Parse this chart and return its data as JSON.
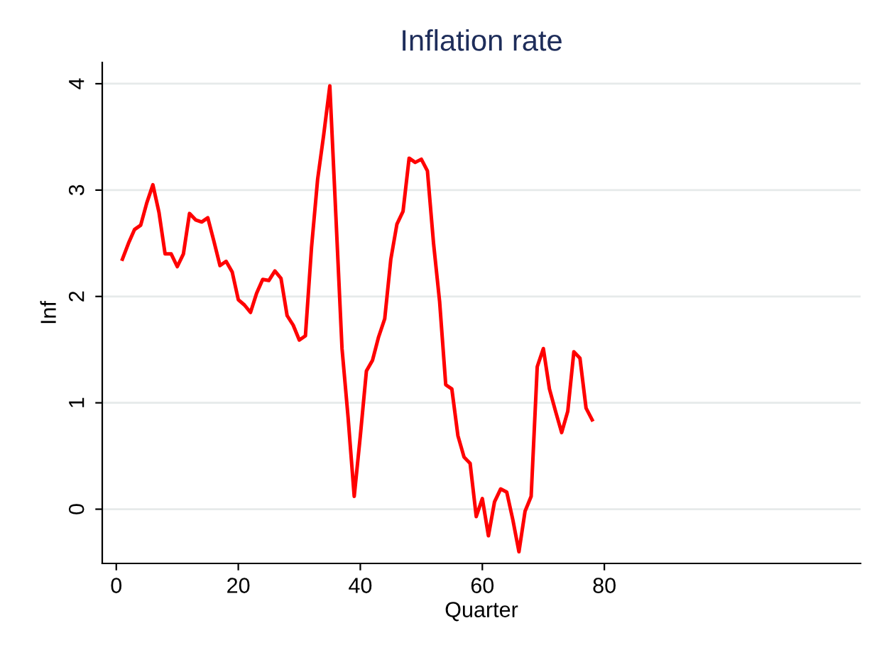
{
  "chart_data": {
    "type": "line",
    "title": "Inflation rate",
    "xlabel": "Quarter",
    "ylabel": "Inf",
    "x": [
      1,
      2,
      3,
      4,
      5,
      6,
      7,
      8,
      9,
      10,
      11,
      12,
      13,
      14,
      15,
      16,
      17,
      18,
      19,
      20,
      21,
      22,
      23,
      24,
      25,
      26,
      27,
      28,
      29,
      30,
      31,
      32,
      33,
      34,
      35,
      36,
      37,
      38,
      39,
      40,
      41,
      42,
      43,
      44,
      45,
      46,
      47,
      48,
      49,
      50,
      51,
      52,
      53,
      54,
      55,
      56,
      57,
      58,
      59,
      60,
      61,
      62,
      63,
      64,
      65,
      66,
      67,
      68,
      69,
      70,
      71,
      72,
      73,
      74,
      75,
      76,
      77,
      78
    ],
    "series": [
      {
        "color": "#ff0000",
        "values": [
          2.35,
          2.5,
          2.63,
          2.67,
          2.88,
          3.05,
          2.79,
          2.4,
          2.4,
          2.28,
          2.4,
          2.78,
          2.72,
          2.7,
          2.74,
          2.52,
          2.29,
          2.33,
          2.23,
          1.97,
          1.92,
          1.85,
          2.03,
          2.16,
          2.15,
          2.24,
          2.17,
          1.82,
          1.73,
          1.59,
          1.63,
          2.46,
          3.1,
          3.52,
          3.98,
          2.75,
          1.51,
          0.86,
          0.12,
          0.69,
          1.3,
          1.4,
          1.62,
          1.79,
          2.35,
          2.68,
          2.8,
          3.3,
          3.26,
          3.29,
          3.18,
          2.5,
          1.95,
          1.17,
          1.13,
          0.69,
          0.49,
          0.43,
          -0.07,
          0.1,
          -0.25,
          0.07,
          0.19,
          0.16,
          -0.1,
          -0.4,
          -0.02,
          0.12,
          1.34,
          1.51,
          1.13,
          0.92,
          0.72,
          0.92,
          1.48,
          1.42,
          0.95,
          0.84
        ]
      }
    ],
    "xlim": [
      -2.3,
      122
    ],
    "xticks": [
      0,
      20,
      40,
      60,
      80
    ],
    "ylim": [
      -0.51,
      4.2
    ],
    "yticks": [
      0,
      1,
      2,
      3,
      4
    ],
    "grid": "y",
    "legend": false,
    "marker": "none",
    "line_style": "solid"
  }
}
